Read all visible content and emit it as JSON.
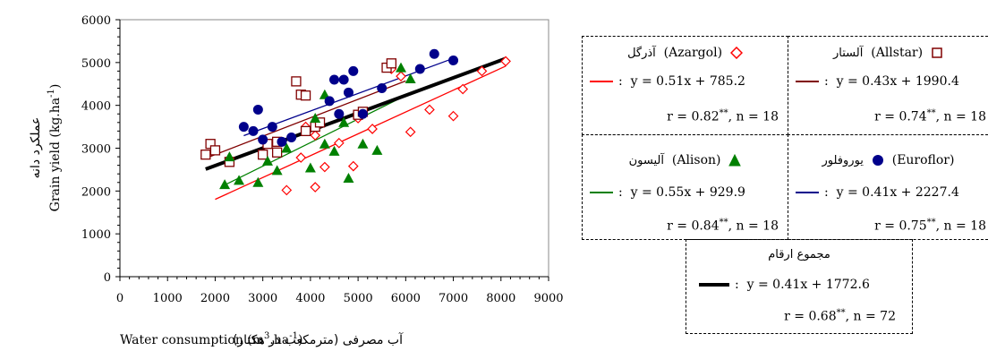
{
  "chart_data": {
    "type": "scatter",
    "xlabel_fa": "آب مصرفی (مترمکعب در هکتار)",
    "xlabel_en": "Water consumption (m",
    "xlabel_en_sup1": "3",
    "xlabel_en_mid": ".ha",
    "xlabel_en_sup2": "-1",
    "xlabel_en_end": ")",
    "ylabel_fa": "عملکرد دانه",
    "ylabel_en": "Grain yield  (kg.ha",
    "ylabel_en_sup": "-1",
    "ylabel_en_end": ")",
    "xlim": [
      0,
      9000
    ],
    "ylim": [
      0,
      6000
    ],
    "xticks": [
      "0",
      "1000",
      "2000",
      "3000",
      "4000",
      "5000",
      "6000",
      "7000",
      "8000",
      "9000"
    ],
    "yticks": [
      "0",
      "1000",
      "2000",
      "3000",
      "4000",
      "5000",
      "6000"
    ],
    "grid": false,
    "series": [
      {
        "name": "Azargol",
        "name_fa": "آذرگل",
        "marker": "diamond-open",
        "color": "#ff0000",
        "points": [
          [
            3500,
            2020
          ],
          [
            4100,
            2090
          ],
          [
            4300,
            2560
          ],
          [
            3800,
            2780
          ],
          [
            4100,
            3300
          ],
          [
            4600,
            3120
          ],
          [
            4900,
            2580
          ],
          [
            5300,
            3450
          ],
          [
            5700,
            4850
          ],
          [
            5900,
            4680
          ],
          [
            6100,
            3380
          ],
          [
            6500,
            3900
          ],
          [
            7000,
            3750
          ],
          [
            7200,
            4380
          ],
          [
            7600,
            4800
          ],
          [
            8100,
            5030
          ],
          [
            3900,
            3500
          ],
          [
            5000,
            3700
          ]
        ],
        "fit": {
          "slope": 0.51,
          "intercept": 785.2,
          "x_range": [
            2000,
            8100
          ]
        },
        "eq": "y = 0.51x + 785.2",
        "r": "r = 0.82",
        "sig": "**",
        "n": ", n = 18"
      },
      {
        "name": "Allstar",
        "name_fa": "آلستار",
        "marker": "square-open",
        "color": "#800000",
        "points": [
          [
            1800,
            2850
          ],
          [
            1900,
            3100
          ],
          [
            2000,
            2950
          ],
          [
            2300,
            2680
          ],
          [
            3000,
            2850
          ],
          [
            3100,
            3100
          ],
          [
            3300,
            2900
          ],
          [
            3300,
            3150
          ],
          [
            3700,
            4560
          ],
          [
            3800,
            4250
          ],
          [
            3900,
            4230
          ],
          [
            3900,
            3400
          ],
          [
            4100,
            3500
          ],
          [
            4200,
            3600
          ],
          [
            5000,
            3780
          ],
          [
            5100,
            3850
          ],
          [
            5600,
            4880
          ],
          [
            5700,
            4980
          ]
        ],
        "fit": {
          "slope": 0.43,
          "intercept": 1990.4,
          "x_range": [
            1800,
            6000
          ]
        },
        "eq": "y = 0.43x + 1990.4",
        "r": "r = 0.74",
        "sig": "**",
        "n": ", n = 18"
      },
      {
        "name": "Alison",
        "name_fa": "آلیسون",
        "marker": "triangle-filled",
        "color": "#008000",
        "points": [
          [
            2200,
            2150
          ],
          [
            2300,
            2800
          ],
          [
            2500,
            2250
          ],
          [
            2900,
            2200
          ],
          [
            3100,
            2700
          ],
          [
            3300,
            2480
          ],
          [
            3500,
            3000
          ],
          [
            4000,
            2540
          ],
          [
            4100,
            3700
          ],
          [
            4300,
            3100
          ],
          [
            4300,
            4250
          ],
          [
            4500,
            2930
          ],
          [
            4700,
            3600
          ],
          [
            4800,
            2300
          ],
          [
            5100,
            3100
          ],
          [
            5400,
            2950
          ],
          [
            5900,
            4880
          ],
          [
            6100,
            4620
          ]
        ],
        "fit": {
          "slope": 0.55,
          "intercept": 929.9,
          "x_range": [
            2200,
            6200
          ]
        },
        "eq": "y = 0.55x + 929.9",
        "r": "r = 0.84",
        "sig": "**",
        "n": ", n = 18"
      },
      {
        "name": "Euroflor",
        "name_fa": "یوروفلور",
        "marker": "circle-filled",
        "color": "#00008b",
        "points": [
          [
            2600,
            3500
          ],
          [
            2800,
            3400
          ],
          [
            2900,
            3900
          ],
          [
            3000,
            3200
          ],
          [
            3200,
            3500
          ],
          [
            3400,
            3150
          ],
          [
            3600,
            3250
          ],
          [
            4400,
            4100
          ],
          [
            4500,
            4600
          ],
          [
            4600,
            3800
          ],
          [
            4700,
            4600
          ],
          [
            4800,
            4300
          ],
          [
            4900,
            4800
          ],
          [
            5100,
            3800
          ],
          [
            5500,
            4400
          ],
          [
            6300,
            4850
          ],
          [
            6600,
            5200
          ],
          [
            7000,
            5050
          ]
        ],
        "fit": {
          "slope": 0.41,
          "intercept": 2227.4,
          "x_range": [
            2600,
            7000
          ]
        },
        "eq": "y = 0.41x + 2227.4",
        "r": "r = 0.75",
        "sig": "**",
        "n": ", n = 18"
      }
    ],
    "total": {
      "name_fa": "مجموع ارقام",
      "color": "#000000",
      "fit": {
        "slope": 0.41,
        "intercept": 1772.6,
        "x_range": [
          1800,
          8100
        ]
      },
      "eq": "y = 0.41x + 1772.6",
      "r": "r = 0.68",
      "sig": "**",
      "n": ", n = 72"
    }
  },
  "legend": {
    "colon": ":"
  }
}
